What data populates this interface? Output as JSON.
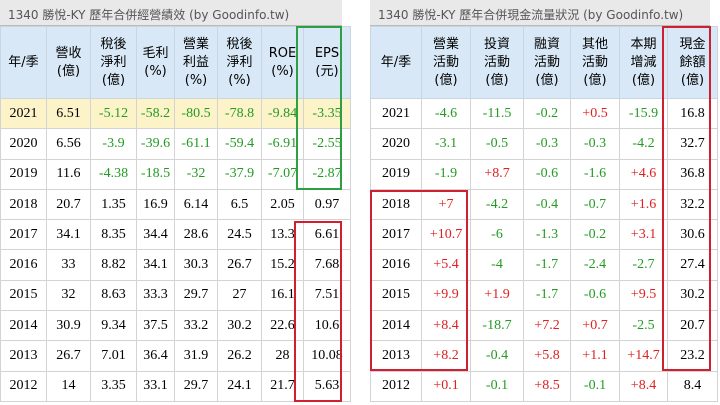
{
  "left": {
    "title": "1340 勝悅-KY 歷年合併經營績效 (by Goodinfo.tw)",
    "headers": [
      [
        "年/季"
      ],
      [
        "營收",
        "(億)"
      ],
      [
        "稅後",
        "淨利",
        "(億)"
      ],
      [
        "毛利",
        "(%)"
      ],
      [
        "營業",
        "利益",
        "(%)"
      ],
      [
        "稅後",
        "淨利",
        "(%)"
      ],
      [
        "ROE",
        "(%)"
      ],
      [
        "EPS",
        "(元)"
      ]
    ],
    "rows": [
      [
        "2021",
        "6.51",
        "-5.12",
        "-58.2",
        "-80.5",
        "-78.8",
        "-9.84",
        "-3.35"
      ],
      [
        "2020",
        "6.56",
        "-3.9",
        "-39.6",
        "-61.1",
        "-59.4",
        "-6.91",
        "-2.55"
      ],
      [
        "2019",
        "11.6",
        "-4.38",
        "-18.5",
        "-32",
        "-37.9",
        "-7.07",
        "-2.87"
      ],
      [
        "2018",
        "20.7",
        "1.35",
        "16.9",
        "6.14",
        "6.5",
        "2.05",
        "0.97"
      ],
      [
        "2017",
        "34.1",
        "8.35",
        "34.4",
        "28.6",
        "24.5",
        "13.3",
        "6.61"
      ],
      [
        "2016",
        "33",
        "8.82",
        "34.1",
        "30.3",
        "26.7",
        "15.2",
        "7.68"
      ],
      [
        "2015",
        "32",
        "8.63",
        "33.3",
        "29.7",
        "27",
        "16.1",
        "7.51"
      ],
      [
        "2014",
        "30.9",
        "9.34",
        "37.5",
        "33.2",
        "30.2",
        "22.6",
        "10.6"
      ],
      [
        "2013",
        "26.7",
        "7.01",
        "36.4",
        "31.9",
        "26.2",
        "28",
        "10.08"
      ],
      [
        "2012",
        "14",
        "3.35",
        "33.1",
        "29.7",
        "24.1",
        "21.7",
        "5.63"
      ]
    ]
  },
  "right": {
    "title": "1340 勝悅-KY 歷年合併現金流量狀況 (by Goodinfo.tw)",
    "headers": [
      [
        "年/季"
      ],
      [
        "營業",
        "活動",
        "(億)"
      ],
      [
        "投資",
        "活動",
        "(億)"
      ],
      [
        "融資",
        "活動",
        "(億)"
      ],
      [
        "其他",
        "活動",
        "(億)"
      ],
      [
        "本期",
        "增減",
        "(億)"
      ],
      [
        "現金",
        "餘額",
        "(億)"
      ]
    ],
    "rows": [
      [
        "2021",
        "-4.6",
        "-11.5",
        "-0.2",
        "+0.5",
        "-15.9",
        "16.8"
      ],
      [
        "2020",
        "-3.1",
        "-0.5",
        "-0.3",
        "-0.3",
        "-4.2",
        "32.7"
      ],
      [
        "2019",
        "-1.9",
        "+8.7",
        "-0.6",
        "-1.6",
        "+4.6",
        "36.8"
      ],
      [
        "2018",
        "+7",
        "-4.2",
        "-0.4",
        "-0.7",
        "+1.6",
        "32.2"
      ],
      [
        "2017",
        "+10.7",
        "-6",
        "-1.3",
        "-0.2",
        "+3.1",
        "30.6"
      ],
      [
        "2016",
        "+5.4",
        "-4",
        "-1.7",
        "-2.4",
        "-2.7",
        "27.4"
      ],
      [
        "2015",
        "+9.9",
        "+1.9",
        "-1.7",
        "-0.6",
        "+9.5",
        "30.2"
      ],
      [
        "2014",
        "+8.4",
        "-18.7",
        "+7.2",
        "+0.7",
        "-2.5",
        "20.7"
      ],
      [
        "2013",
        "+8.2",
        "-0.4",
        "+5.8",
        "+1.1",
        "+14.7",
        "23.2"
      ],
      [
        "2012",
        "+0.1",
        "-0.1",
        "+8.5",
        "-0.1",
        "+8.4",
        "8.4"
      ]
    ]
  }
}
